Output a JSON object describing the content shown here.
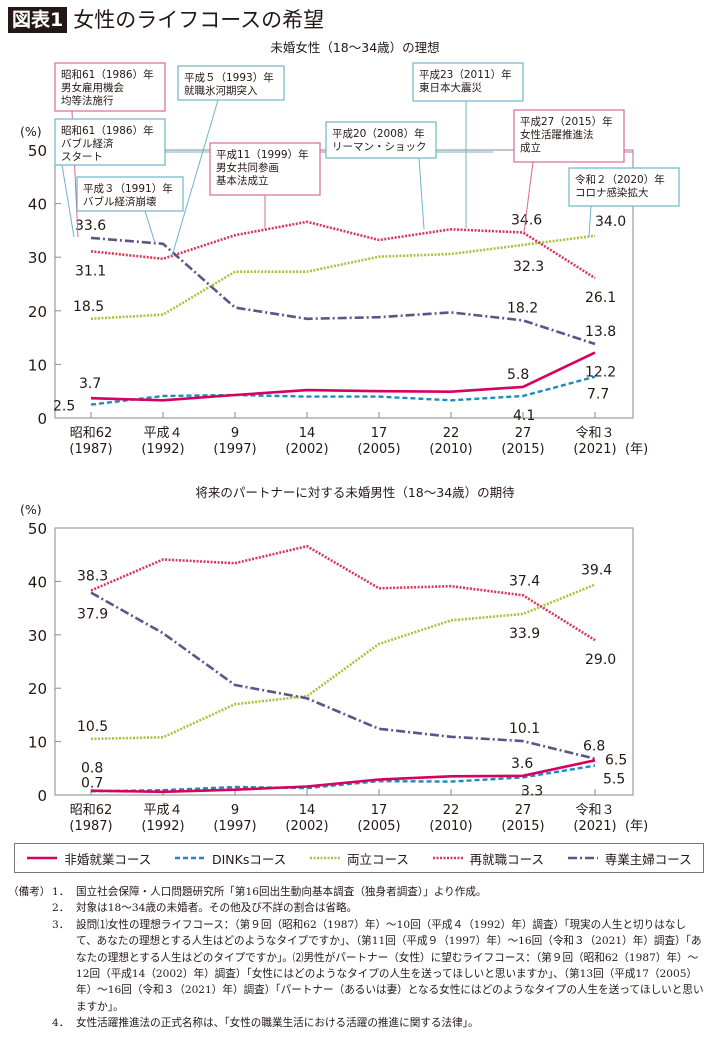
{
  "figure": {
    "label": "図表1",
    "title": "女性のライフコースの希望"
  },
  "chart_data": [
    {
      "type": "line",
      "title": "未婚女性（18〜34歳）の理想",
      "ylabel": "(%)",
      "xlabel": "(年)",
      "ylim": [
        0,
        50
      ],
      "yticks": [
        0,
        10,
        20,
        30,
        40,
        50
      ],
      "categories": [
        [
          "昭和62",
          "(1987)"
        ],
        [
          "平成４",
          "(1992)"
        ],
        [
          "9",
          "(1997)"
        ],
        [
          "14",
          "(2002)"
        ],
        [
          "17",
          "(2005)"
        ],
        [
          "22",
          "(2010)"
        ],
        [
          "27",
          "(2015)"
        ],
        [
          "令和３",
          "(2021)"
        ]
      ],
      "series": [
        {
          "name": "非婚就業コース",
          "key": "hikon",
          "values": [
            3.7,
            3.3,
            4.3,
            5.2,
            5.0,
            4.9,
            5.8,
            12.2
          ]
        },
        {
          "name": "DINKsコース",
          "key": "dinks",
          "values": [
            2.5,
            4.1,
            4.3,
            4.0,
            4.0,
            3.3,
            4.1,
            7.7
          ]
        },
        {
          "name": "両立コース",
          "key": "ryoritsu",
          "values": [
            18.5,
            19.3,
            27.3,
            27.3,
            30.1,
            30.6,
            32.3,
            34.0
          ]
        },
        {
          "name": "再就職コース",
          "key": "saishushoku",
          "values": [
            31.1,
            29.7,
            34.1,
            36.6,
            33.2,
            35.2,
            34.6,
            26.1
          ]
        },
        {
          "name": "専業主婦コース",
          "key": "sengyo",
          "values": [
            33.6,
            32.5,
            20.6,
            18.5,
            18.8,
            19.7,
            18.2,
            13.8
          ]
        }
      ],
      "data_labels": [
        {
          "series": "sengyo",
          "index": 0,
          "text": "33.6"
        },
        {
          "series": "saishushoku",
          "index": 0,
          "text": "31.1"
        },
        {
          "series": "ryoritsu",
          "index": 0,
          "text": "18.5"
        },
        {
          "series": "hikon",
          "index": 0,
          "text": "3.7"
        },
        {
          "series": "dinks",
          "index": 0,
          "text": "2.5"
        },
        {
          "series": "saishushoku",
          "index": 6,
          "text": "34.6"
        },
        {
          "series": "ryoritsu",
          "index": 6,
          "text": "32.3"
        },
        {
          "series": "sengyo",
          "index": 6,
          "text": "18.2"
        },
        {
          "series": "hikon",
          "index": 6,
          "text": "5.8"
        },
        {
          "series": "dinks",
          "index": 6,
          "text": "4.1"
        },
        {
          "series": "ryoritsu",
          "index": 7,
          "text": "34.0"
        },
        {
          "series": "saishushoku",
          "index": 7,
          "text": "26.1"
        },
        {
          "series": "sengyo",
          "index": 7,
          "text": "13.8"
        },
        {
          "series": "hikon",
          "index": 7,
          "text": "12.2"
        },
        {
          "series": "dinks",
          "index": 7,
          "text": "7.7"
        }
      ],
      "annotations": [
        {
          "lines": [
            "昭和61（1986）年",
            "男女雇用機会",
            "均等法施行"
          ],
          "color": "pink"
        },
        {
          "lines": [
            "平成５（1993）年",
            "就職氷河期突入"
          ],
          "color": "blue"
        },
        {
          "lines": [
            "昭和61（1986）年",
            "バブル経済",
            "スタート"
          ],
          "color": "blue"
        },
        {
          "lines": [
            "平成３（1991）年",
            "バブル経済崩壊"
          ],
          "color": "blue"
        },
        {
          "lines": [
            "平成11（1999）年",
            "男女共同参画",
            "基本法成立"
          ],
          "color": "pink"
        },
        {
          "lines": [
            "平成20（2008）年",
            "リーマン・ショック"
          ],
          "color": "blue"
        },
        {
          "lines": [
            "平成23（2011）年",
            "東日本大震災"
          ],
          "color": "blue"
        },
        {
          "lines": [
            "平成27（2015）年",
            "女性活躍推進法",
            "成立"
          ],
          "color": "pink"
        },
        {
          "lines": [
            "令和２（2020）年",
            "コロナ感染拡大"
          ],
          "color": "blue"
        }
      ]
    },
    {
      "type": "line",
      "title": "将来のパートナーに対する未婚男性（18〜34歳）の期待",
      "ylabel": "(%)",
      "xlabel": "(年)",
      "ylim": [
        0,
        50
      ],
      "yticks": [
        0,
        10,
        20,
        30,
        40,
        50
      ],
      "categories": [
        [
          "昭和62",
          "(1987)"
        ],
        [
          "平成４",
          "(1992)"
        ],
        [
          "9",
          "(1997)"
        ],
        [
          "14",
          "(2002)"
        ],
        [
          "17",
          "(2005)"
        ],
        [
          "22",
          "(2010)"
        ],
        [
          "27",
          "(2015)"
        ],
        [
          "令和３",
          "(2021)"
        ]
      ],
      "series": [
        {
          "name": "非婚就業コース",
          "key": "hikon",
          "values": [
            0.8,
            0.6,
            1.0,
            1.6,
            2.9,
            3.5,
            3.6,
            6.5
          ]
        },
        {
          "name": "DINKsコース",
          "key": "dinks",
          "values": [
            0.7,
            0.9,
            1.5,
            1.3,
            2.6,
            2.5,
            3.3,
            5.5
          ]
        },
        {
          "name": "両立コース",
          "key": "ryoritsu",
          "values": [
            10.5,
            10.8,
            17.0,
            18.5,
            28.3,
            32.7,
            33.9,
            39.4
          ]
        },
        {
          "name": "再就職コース",
          "key": "saishushoku",
          "values": [
            38.3,
            44.1,
            43.4,
            46.6,
            38.7,
            39.1,
            37.4,
            29.0
          ]
        },
        {
          "name": "専業主婦コース",
          "key": "sengyo",
          "values": [
            37.9,
            30.3,
            20.6,
            18.1,
            12.4,
            10.9,
            10.1,
            6.8
          ]
        }
      ],
      "data_labels": [
        {
          "series": "saishushoku",
          "index": 0,
          "text": "38.3"
        },
        {
          "series": "sengyo",
          "index": 0,
          "text": "37.9"
        },
        {
          "series": "ryoritsu",
          "index": 0,
          "text": "10.5"
        },
        {
          "series": "hikon",
          "index": 0,
          "text": "0.8"
        },
        {
          "series": "dinks",
          "index": 0,
          "text": "0.7"
        },
        {
          "series": "saishushoku",
          "index": 6,
          "text": "37.4"
        },
        {
          "series": "ryoritsu",
          "index": 6,
          "text": "33.9"
        },
        {
          "series": "sengyo",
          "index": 6,
          "text": "10.1"
        },
        {
          "series": "hikon",
          "index": 6,
          "text": "3.6"
        },
        {
          "series": "dinks",
          "index": 6,
          "text": "3.3"
        },
        {
          "series": "ryoritsu",
          "index": 7,
          "text": "39.4"
        },
        {
          "series": "saishushoku",
          "index": 7,
          "text": "29.0"
        },
        {
          "series": "sengyo",
          "index": 7,
          "text": "6.8"
        },
        {
          "series": "hikon",
          "index": 7,
          "text": "6.5"
        },
        {
          "series": "dinks",
          "index": 7,
          "text": "5.5"
        }
      ]
    }
  ],
  "legend": [
    {
      "key": "hikon",
      "label": "非婚就業コース",
      "color": "#d6005f",
      "style": "solid"
    },
    {
      "key": "dinks",
      "label": "DINKsコース",
      "color": "#1d8bbf",
      "style": "dashed"
    },
    {
      "key": "ryoritsu",
      "label": "両立コース",
      "color": "#a8c43c",
      "style": "dotted"
    },
    {
      "key": "saishushoku",
      "label": "再就職コース",
      "color": "#d9365a",
      "style": "dotted"
    },
    {
      "key": "sengyo",
      "label": "専業主婦コース",
      "color": "#5e5488",
      "style": "dashdot"
    }
  ],
  "annotation_colors": {
    "pink": "#d86a9a",
    "blue": "#6fb4c9"
  },
  "notes": {
    "head": "（備考）",
    "items": [
      {
        "num": "1．",
        "text": "国立社会保障・人口問題研究所「第16回出生動向基本調査（独身者調査）」より作成。"
      },
      {
        "num": "2．",
        "text": "対象は18～34歳の未婚者。その他及び不詳の割合は省略。"
      },
      {
        "num": "3．",
        "text": "設問⑴女性の理想ライフコース：（第９回（昭和62（1987）年）～10回（平成４（1992）年）調査）「現実の人生と切りはなして、あなたの理想とする人生はどのようなタイプですか」、（第11回（平成９（1997）年）～16回（令和３（2021）年）調査）「あなたの理想とする人生はどのタイプですか」。⑵男性がパートナー（女性）に望むライフコース：（第９回（昭和62（1987）年）～12回（平成14（2002）年）調査）「女性にはどのようなタイプの人生を送ってほしいと思いますか」、（第13回（平成17（2005）年）～16回（令和３（2021）年）調査）「パートナー（あるいは妻）となる女性にはどのようなタイプの人生を送ってほしいと思いますか」。"
      },
      {
        "num": "4．",
        "text": "女性活躍推進法の正式名称は、「女性の職業生活における活躍の推進に関する法律」。"
      }
    ]
  }
}
